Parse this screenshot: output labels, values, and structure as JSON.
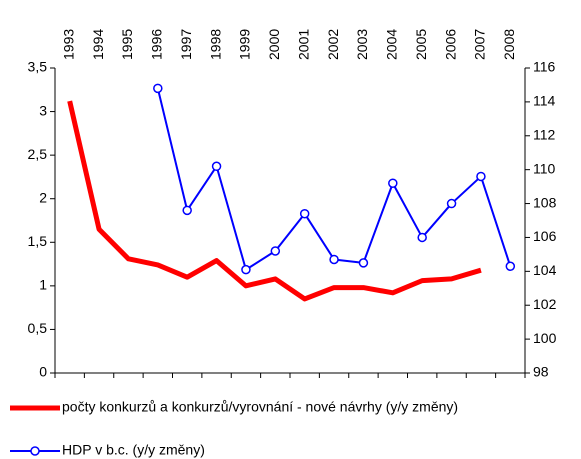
{
  "chart_data": {
    "type": "line",
    "categories": [
      "1993",
      "1994",
      "1995",
      "1996",
      "1997",
      "1998",
      "1999",
      "2000",
      "2001",
      "2002",
      "2003",
      "2004",
      "2005",
      "2006",
      "2007",
      "2008"
    ],
    "series": [
      {
        "name": "počty konkurzů a konkurzů/vyrovnání - nové návrhy (y/y změny)",
        "color": "#ff0000",
        "axis": "y",
        "values": [
          3.12,
          1.65,
          1.31,
          1.24,
          1.1,
          1.29,
          1.0,
          1.08,
          0.85,
          0.98,
          0.98,
          0.92,
          1.06,
          1.08,
          1.18,
          null
        ]
      },
      {
        "name": "HDP v b.c. (y/y změny)",
        "color": "#0000ff",
        "axis": "y2",
        "values": [
          null,
          null,
          null,
          114.8,
          107.6,
          110.2,
          104.1,
          105.2,
          107.4,
          104.7,
          104.5,
          109.2,
          106.0,
          108.0,
          109.6,
          104.3
        ]
      }
    ],
    "ylim": [
      0,
      3.5
    ],
    "yticks": [
      0,
      {
        "value": 0.5,
        "label": "0,5"
      },
      1,
      {
        "value": 1.5,
        "label": "1,5"
      },
      2,
      {
        "value": 2.5,
        "label": "2,5"
      },
      3,
      {
        "value": 3.5,
        "label": "3,5"
      }
    ],
    "y2lim": [
      98,
      116
    ],
    "y2ticks": [
      98,
      100,
      102,
      104,
      106,
      108,
      110,
      112,
      114,
      116
    ]
  }
}
